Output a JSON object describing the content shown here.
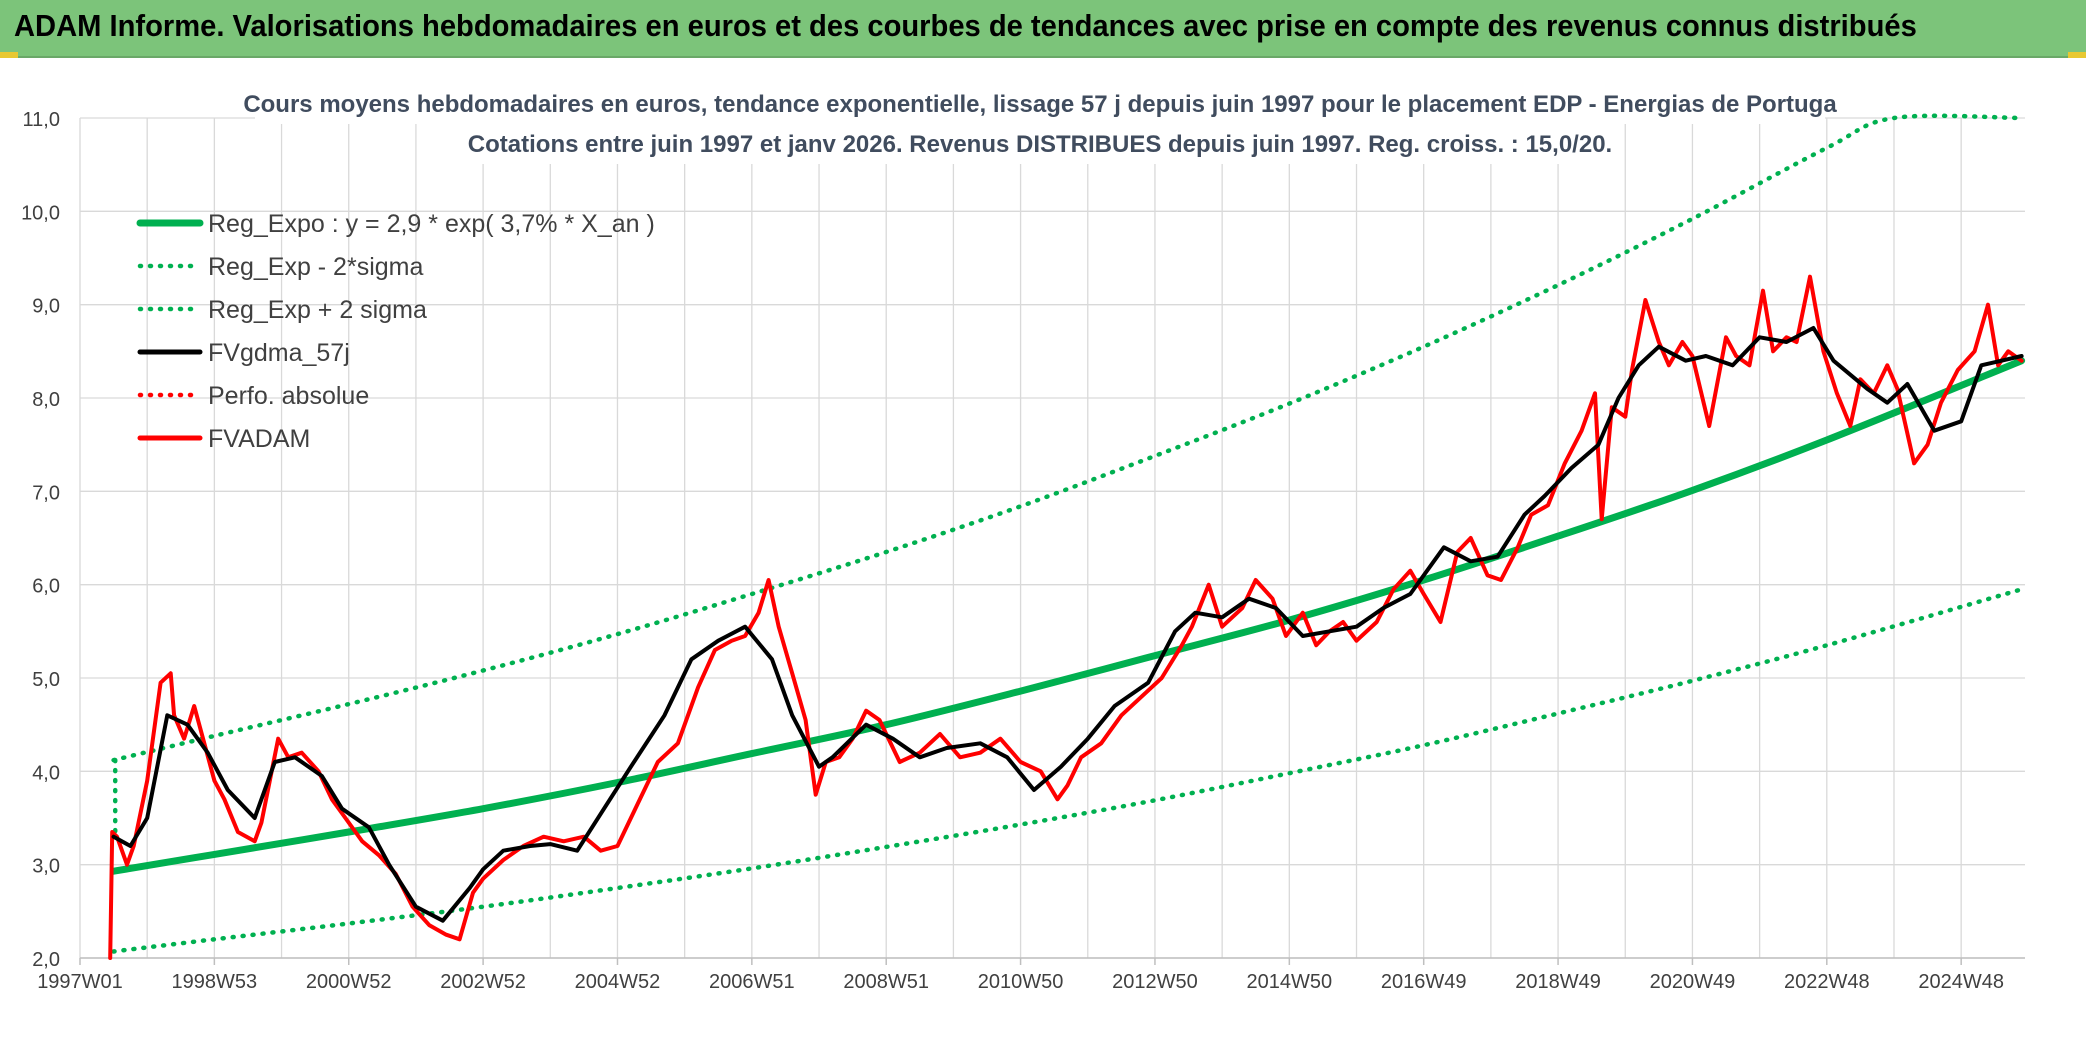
{
  "header": {
    "title": "ADAM Informe. Valorisations hebdomadaires en euros et des courbes de tendances avec prise en compte des revenus connus distribués"
  },
  "colors": {
    "header_bg": "#7cc47a",
    "green": "#00b050",
    "black": "#000000",
    "red": "#ff0000",
    "title_text": "#404c5e",
    "grid": "#d9d9d9"
  },
  "chart_data": {
    "type": "line",
    "title": "Cours moyens hebdomadaires en euros, tendance exponentielle, lissage 57 j depuis juin 1997 pour le placement EDP - Energias de Portuga",
    "subtitle": "Cotations entre juin 1997 et janv 2026. Revenus DISTRIBUES depuis juin 1997. Reg. croiss. : 15,0/20.",
    "xlabel": "",
    "ylabel": "",
    "ylim": [
      2.0,
      11.0
    ],
    "xlim": [
      1997.0,
      2025.95
    ],
    "y_ticks": [
      "2,0",
      "3,0",
      "4,0",
      "5,0",
      "6,0",
      "7,0",
      "8,0",
      "9,0",
      "10,0",
      "11,0"
    ],
    "x_ticks": [
      {
        "label": "1997W01",
        "x": 1997.0
      },
      {
        "label": "1998W53",
        "x": 1999.0
      },
      {
        "label": "2000W52",
        "x": 2001.0
      },
      {
        "label": "2002W52",
        "x": 2003.0
      },
      {
        "label": "2004W52",
        "x": 2005.0
      },
      {
        "label": "2006W51",
        "x": 2007.0
      },
      {
        "label": "2008W51",
        "x": 2009.0
      },
      {
        "label": "2010W50",
        "x": 2011.0
      },
      {
        "label": "2012W50",
        "x": 2013.0
      },
      {
        "label": "2014W50",
        "x": 2015.0
      },
      {
        "label": "2016W49",
        "x": 2017.0
      },
      {
        "label": "2018W49",
        "x": 2019.0
      },
      {
        "label": "2020W49",
        "x": 2021.0
      },
      {
        "label": "2022W48",
        "x": 2023.0
      },
      {
        "label": "2024W48",
        "x": 2025.0
      }
    ],
    "legend_position": "top-left",
    "legend": [
      {
        "label": "Reg_Expo : y = 2,9 * exp( 3,7% *  X_an )",
        "color": "#00b050",
        "style": "solid"
      },
      {
        "label": "Reg_Exp - 2*sigma",
        "color": "#00b050",
        "style": "dotted"
      },
      {
        "label": "Reg_Exp + 2 sigma",
        "color": "#00b050",
        "style": "dotted"
      },
      {
        "label": "FVgdma_57j",
        "color": "#000000",
        "style": "solid"
      },
      {
        "label": "Perfo. absolue",
        "color": "#ff0000",
        "style": "dotted"
      },
      {
        "label": "FVADAM",
        "color": "#ff0000",
        "style": "solid"
      }
    ],
    "series": [
      {
        "name": "Reg_Expo",
        "x": [
          1997.5,
          1999,
          2001,
          2003,
          2005,
          2007,
          2009,
          2011,
          2013,
          2015,
          2017,
          2019,
          2021,
          2023,
          2025.9
        ],
        "values": [
          2.93,
          3.11,
          3.35,
          3.6,
          3.88,
          4.19,
          4.5,
          4.86,
          5.24,
          5.62,
          6.05,
          6.52,
          7.01,
          7.55,
          8.4
        ]
      },
      {
        "name": "Reg_Exp - 2*sigma",
        "x": [
          1997.5,
          1999,
          2001,
          2003,
          2005,
          2007,
          2009,
          2011,
          2013,
          2015,
          2017,
          2019,
          2021,
          2023,
          2025.9
        ],
        "values": [
          2.07,
          2.2,
          2.37,
          2.55,
          2.75,
          2.96,
          3.19,
          3.43,
          3.69,
          3.98,
          4.28,
          4.62,
          4.97,
          5.35,
          5.95
        ]
      },
      {
        "name": "Reg_Exp + 2 sigma",
        "x": [
          1997.5,
          1999,
          2001,
          2003,
          2005,
          2007,
          2009,
          2011,
          2013,
          2015,
          2017,
          2019,
          2021,
          2023,
          2024,
          2025.9
        ],
        "values": [
          4.12,
          4.38,
          4.72,
          5.08,
          5.47,
          5.9,
          6.35,
          6.84,
          7.38,
          7.94,
          8.55,
          9.21,
          9.92,
          10.68,
          11.0,
          11.0
        ]
      },
      {
        "name": "FVgdma_57j",
        "x": [
          1997.5,
          1997.75,
          1998.0,
          1998.3,
          1998.6,
          1998.9,
          1999.2,
          1999.6,
          1999.9,
          2000.2,
          2000.6,
          2000.9,
          2001.3,
          2001.6,
          2002.0,
          2002.4,
          2002.8,
          2003.0,
          2003.3,
          2003.7,
          2004.0,
          2004.4,
          2004.8,
          2005.2,
          2005.7,
          2006.1,
          2006.5,
          2006.9,
          2007.3,
          2007.6,
          2008.0,
          2008.2,
          2008.7,
          2009.1,
          2009.5,
          2009.9,
          2010.4,
          2010.8,
          2011.2,
          2011.6,
          2012.0,
          2012.4,
          2012.9,
          2013.3,
          2013.6,
          2014.0,
          2014.4,
          2014.8,
          2015.2,
          2015.6,
          2016.0,
          2016.4,
          2016.8,
          2017.3,
          2017.7,
          2018.1,
          2018.5,
          2018.8,
          2019.2,
          2019.6,
          2019.9,
          2020.2,
          2020.5,
          2020.9,
          2021.2,
          2021.6,
          2022.0,
          2022.4,
          2022.8,
          2023.1,
          2023.6,
          2023.9,
          2024.2,
          2024.6,
          2025.0,
          2025.3,
          2025.6,
          2025.9
        ],
        "values": [
          3.3,
          3.2,
          3.5,
          4.6,
          4.5,
          4.2,
          3.8,
          3.5,
          4.1,
          4.15,
          3.95,
          3.6,
          3.4,
          3.0,
          2.55,
          2.4,
          2.75,
          2.95,
          3.15,
          3.2,
          3.22,
          3.15,
          3.6,
          4.05,
          4.6,
          5.2,
          5.4,
          5.55,
          5.2,
          4.6,
          4.05,
          4.15,
          4.5,
          4.35,
          4.15,
          4.25,
          4.3,
          4.15,
          3.8,
          4.05,
          4.35,
          4.7,
          4.95,
          5.5,
          5.7,
          5.65,
          5.85,
          5.75,
          5.45,
          5.5,
          5.55,
          5.75,
          5.9,
          6.4,
          6.25,
          6.3,
          6.75,
          6.95,
          7.25,
          7.5,
          8.0,
          8.35,
          8.55,
          8.4,
          8.45,
          8.35,
          8.65,
          8.6,
          8.75,
          8.4,
          8.1,
          7.95,
          8.15,
          7.65,
          7.75,
          8.35,
          8.4,
          8.45
        ]
      },
      {
        "name": "FVADAM",
        "x": [
          1997.45,
          1997.48,
          1997.55,
          1997.7,
          1997.8,
          1998.0,
          1998.2,
          1998.35,
          1998.4,
          1998.55,
          1998.7,
          1998.85,
          1999.0,
          1999.15,
          1999.35,
          1999.6,
          1999.7,
          1999.95,
          2000.1,
          2000.3,
          2000.55,
          2000.75,
          2000.95,
          2001.2,
          2001.45,
          2001.7,
          2001.95,
          2002.2,
          2002.45,
          2002.65,
          2002.75,
          2002.85,
          2003.0,
          2003.3,
          2003.6,
          2003.9,
          2004.2,
          2004.5,
          2004.75,
          2005.0,
          2005.3,
          2005.6,
          2005.9,
          2006.2,
          2006.45,
          2006.7,
          2006.9,
          2007.1,
          2007.25,
          2007.4,
          2007.6,
          2007.8,
          2007.95,
          2008.1,
          2008.3,
          2008.5,
          2008.7,
          2008.9,
          2009.2,
          2009.5,
          2009.8,
          2010.1,
          2010.4,
          2010.7,
          2011.0,
          2011.3,
          2011.55,
          2011.7,
          2011.9,
          2012.2,
          2012.5,
          2012.8,
          2013.1,
          2013.4,
          2013.55,
          2013.8,
          2014.0,
          2014.3,
          2014.5,
          2014.75,
          2014.95,
          2015.2,
          2015.4,
          2015.6,
          2015.8,
          2016.0,
          2016.3,
          2016.55,
          2016.8,
          2017.0,
          2017.25,
          2017.5,
          2017.7,
          2017.95,
          2018.15,
          2018.4,
          2018.6,
          2018.85,
          2019.1,
          2019.35,
          2019.55,
          2019.65,
          2019.8,
          2020.0,
          2020.1,
          2020.3,
          2020.5,
          2020.65,
          2020.85,
          2021.0,
          2021.25,
          2021.5,
          2021.65,
          2021.85,
          2022.05,
          2022.2,
          2022.4,
          2022.55,
          2022.75,
          2022.95,
          2023.15,
          2023.35,
          2023.5,
          2023.7,
          2023.9,
          2024.05,
          2024.3,
          2024.5,
          2024.7,
          2024.95,
          2025.2,
          2025.4,
          2025.55,
          2025.7,
          2025.9
        ],
        "values": [
          2.0,
          3.35,
          3.3,
          3.0,
          3.2,
          3.9,
          4.95,
          5.05,
          4.6,
          4.35,
          4.7,
          4.3,
          3.9,
          3.7,
          3.35,
          3.25,
          3.45,
          4.35,
          4.15,
          4.2,
          4.0,
          3.7,
          3.5,
          3.25,
          3.1,
          2.9,
          2.55,
          2.35,
          2.25,
          2.2,
          2.45,
          2.7,
          2.85,
          3.05,
          3.2,
          3.3,
          3.25,
          3.3,
          3.15,
          3.2,
          3.65,
          4.1,
          4.3,
          4.9,
          5.3,
          5.4,
          5.45,
          5.7,
          6.05,
          5.55,
          5.05,
          4.55,
          3.75,
          4.1,
          4.15,
          4.35,
          4.65,
          4.55,
          4.1,
          4.2,
          4.4,
          4.15,
          4.2,
          4.35,
          4.1,
          4.0,
          3.7,
          3.85,
          4.15,
          4.3,
          4.6,
          4.8,
          5.0,
          5.35,
          5.55,
          6.0,
          5.55,
          5.75,
          6.05,
          5.85,
          5.45,
          5.7,
          5.35,
          5.5,
          5.6,
          5.4,
          5.6,
          5.95,
          6.15,
          5.9,
          5.6,
          6.35,
          6.5,
          6.1,
          6.05,
          6.4,
          6.75,
          6.85,
          7.3,
          7.65,
          8.05,
          6.7,
          7.9,
          7.8,
          8.3,
          9.05,
          8.6,
          8.35,
          8.6,
          8.45,
          7.7,
          8.65,
          8.45,
          8.35,
          9.15,
          8.5,
          8.65,
          8.6,
          9.3,
          8.5,
          8.05,
          7.7,
          8.2,
          8.05,
          8.35,
          8.1,
          7.3,
          7.5,
          7.95,
          8.3,
          8.5,
          9.0,
          8.35,
          8.5,
          8.4
        ]
      }
    ]
  }
}
